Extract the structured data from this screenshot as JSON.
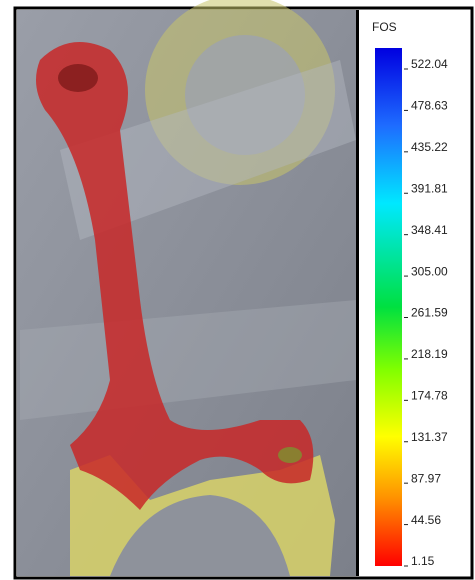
{
  "legend": {
    "title": "FOS",
    "labels": [
      "522.04",
      "478.63",
      "435.22",
      "391.81",
      "348.41",
      "305.00",
      "261.59",
      "218.19",
      "174.78",
      "131.37",
      "87.97",
      "44.56",
      "1.15"
    ]
  }
}
